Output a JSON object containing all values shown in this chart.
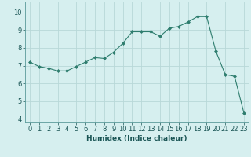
{
  "x": [
    0,
    1,
    2,
    3,
    4,
    5,
    6,
    7,
    8,
    9,
    10,
    11,
    12,
    13,
    14,
    15,
    16,
    17,
    18,
    19,
    20,
    21,
    22,
    23
  ],
  "y": [
    7.2,
    6.95,
    6.85,
    6.7,
    6.7,
    6.95,
    7.2,
    7.45,
    7.4,
    7.75,
    8.25,
    8.9,
    8.9,
    8.9,
    8.65,
    9.1,
    9.2,
    9.45,
    9.75,
    9.75,
    7.8,
    6.5,
    6.4,
    4.35
  ],
  "line_color": "#2e7d6e",
  "marker": "D",
  "marker_size": 2.0,
  "bg_color": "#d6efef",
  "grid_color": "#b8d8d8",
  "xlabel": "Humidex (Indice chaleur)",
  "ylim": [
    3.8,
    10.6
  ],
  "xlim": [
    -0.5,
    23.5
  ],
  "yticks": [
    4,
    5,
    6,
    7,
    8,
    9,
    10
  ],
  "xticks": [
    0,
    1,
    2,
    3,
    4,
    5,
    6,
    7,
    8,
    9,
    10,
    11,
    12,
    13,
    14,
    15,
    16,
    17,
    18,
    19,
    20,
    21,
    22,
    23
  ],
  "xlabel_fontsize": 6.5,
  "tick_fontsize": 6.0,
  "linewidth": 0.8
}
